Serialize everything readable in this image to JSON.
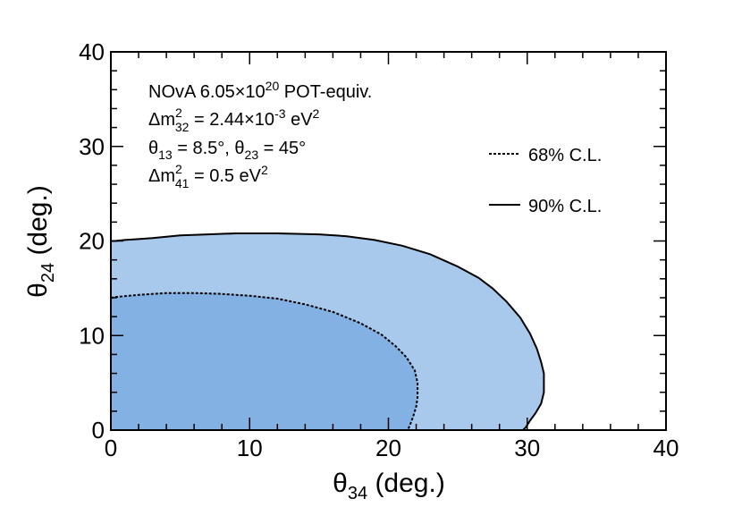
{
  "chart_data": {
    "type": "area",
    "xlim": [
      0,
      40
    ],
    "ylim": [
      0,
      40
    ],
    "xticks": [
      "0",
      "10",
      "20",
      "30",
      "40"
    ],
    "yticks": [
      "0",
      "10",
      "20",
      "30",
      "40"
    ],
    "xlabel": {
      "symbol": "θ",
      "sub": "34",
      "unit": " (deg.)"
    },
    "ylabel": {
      "symbol": "θ",
      "sub": "24",
      "unit": " (deg.)"
    },
    "grid": false,
    "legend_position": "right",
    "annotations": {
      "line1": {
        "pre": "NOvA 6.05×10",
        "sup": "20",
        "post": " POT-equiv."
      },
      "line2": {
        "pre": "Δm",
        "sup": "2",
        "sub": "32",
        "post1": " = 2.44×10",
        "sup2": "-3",
        "post2": " eV",
        "sup3": "2"
      },
      "line3": {
        "a": "θ",
        "asub": "13",
        "b": " = 8.5°, θ",
        "bsub": "23",
        "c": " = 45°"
      },
      "line4": {
        "pre": "Δm",
        "sup": "2",
        "sub": "41",
        "post": " = 0.5 eV",
        "sup2": "2"
      }
    },
    "colors": {
      "region_90": "#a8c9ec",
      "region_68": "#84b1e3",
      "contour": "#000000"
    },
    "series": [
      {
        "name": "90% C.L.",
        "style": "solid",
        "x": [
          0,
          0.3,
          1,
          2,
          3,
          5,
          7,
          9,
          12,
          15,
          17,
          19,
          21,
          23,
          25,
          26.5,
          27.5,
          28.5,
          29.5,
          30.2,
          30.7,
          31,
          31.2,
          31.2,
          31,
          30.6,
          30.2,
          29.9,
          29.7
        ],
        "y": [
          20,
          20,
          20.1,
          20.2,
          20.3,
          20.6,
          20.7,
          20.8,
          20.8,
          20.7,
          20.5,
          20.1,
          19.5,
          18.6,
          17.3,
          16.1,
          15,
          13.6,
          11.9,
          10.2,
          8.6,
          7.2,
          6,
          4,
          2.8,
          1.8,
          1,
          0.3,
          0
        ]
      },
      {
        "name": "68% C.L.",
        "style": "dashed",
        "x": [
          0,
          0.5,
          2,
          4,
          6,
          8,
          10,
          12,
          14,
          16,
          18,
          19.5,
          20.5,
          21.3,
          21.9,
          22.1,
          22.1,
          22,
          21.8,
          21.6,
          21.4
        ],
        "y": [
          14,
          14.1,
          14.3,
          14.5,
          14.5,
          14.4,
          14.2,
          13.9,
          13.3,
          12.5,
          11.3,
          10.1,
          8.9,
          7.7,
          6.3,
          5,
          3.5,
          2.5,
          1.5,
          0.7,
          0
        ]
      }
    ]
  }
}
